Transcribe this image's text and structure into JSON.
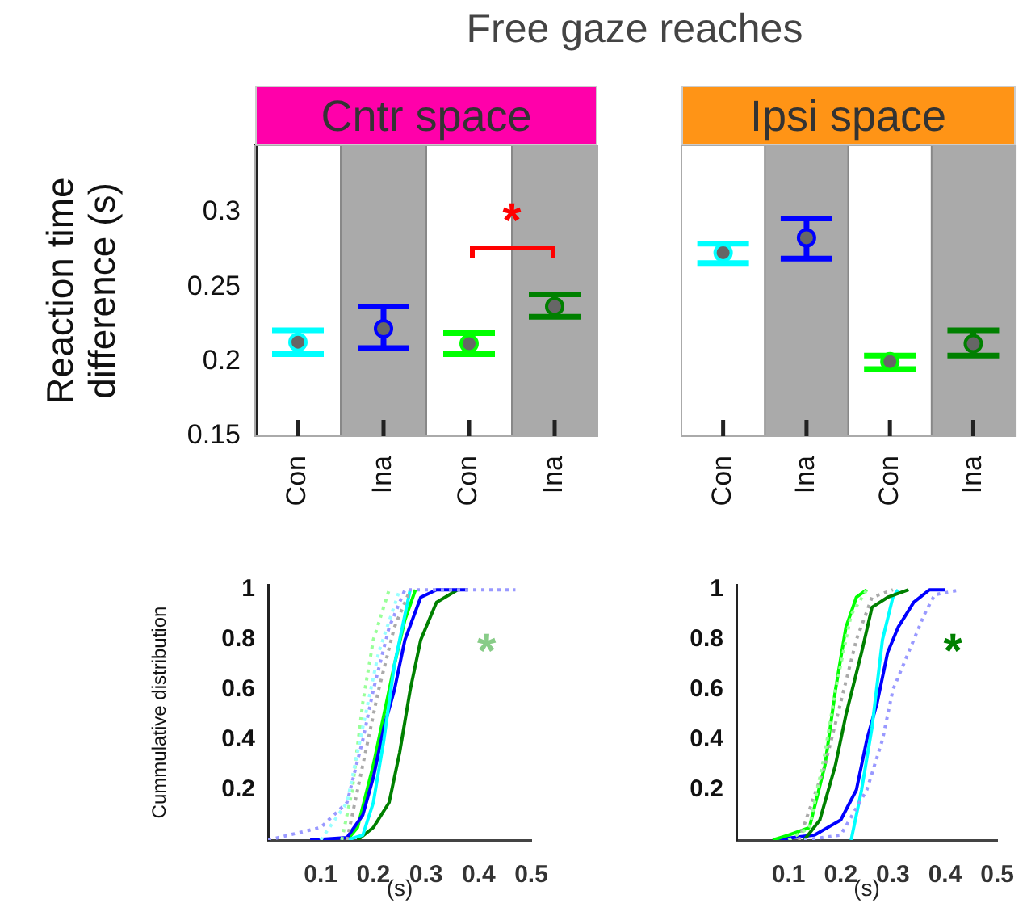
{
  "chart_data": [
    {
      "type": "scatter",
      "title": "Cntr space",
      "ylabel": "Reaction time difference (s)",
      "annotations": [
        "Free gaze reaches",
        "*"
      ],
      "categories": [
        "Con",
        "Ina",
        "Con",
        "Ina"
      ],
      "color": "#666666",
      "series": [
        {
          "color": "#00ffff",
          "values": [
            0.213,
            null,
            null,
            null
          ],
          "errors": [
            [
              0.205,
              0.221
            ],
            null,
            null,
            null
          ]
        },
        {
          "color": "#0000ff",
          "values": [
            null,
            0.222,
            null,
            null
          ],
          "errors": [
            null,
            [
              0.209,
              0.237
            ],
            null,
            null
          ]
        },
        {
          "color": "#00ff00",
          "values": [
            null,
            null,
            0.212,
            null
          ],
          "errors": [
            null,
            null,
            [
              0.205,
              0.219
            ],
            null
          ]
        },
        {
          "color": "#008000",
          "values": [
            null,
            null,
            null,
            0.237
          ],
          "errors": [
            null,
            null,
            null,
            [
              0.23,
              0.245
            ]
          ]
        }
      ],
      "bands": [
        {
          "axis": "x",
          "from": "Ina",
          "to": "Ina",
          "color": "#aaaaaa"
        }
      ],
      "ylim": [
        0.15,
        0.345
      ],
      "yticks": [
        0.15,
        0.2,
        0.25,
        0.3
      ],
      "grid": false,
      "legend": false,
      "marker": "circle"
    },
    {
      "type": "scatter",
      "title": "Ipsi space",
      "categories": [
        "Con",
        "Ina",
        "Con",
        "Ina"
      ],
      "color": "#666666",
      "series": [
        {
          "color": "#00ffff",
          "values": [
            0.273,
            null,
            null,
            null
          ],
          "errors": [
            [
              0.266,
              0.279
            ],
            null,
            null,
            null
          ]
        },
        {
          "color": "#0000ff",
          "values": [
            null,
            0.283,
            null,
            null
          ],
          "errors": [
            null,
            [
              0.269,
              0.296
            ],
            null,
            null
          ]
        },
        {
          "color": "#00ff00",
          "values": [
            null,
            null,
            0.2,
            null
          ],
          "errors": [
            null,
            null,
            [
              0.195,
              0.204
            ],
            null
          ]
        },
        {
          "color": "#008000",
          "values": [
            null,
            null,
            null,
            0.212
          ],
          "errors": [
            null,
            null,
            null,
            [
              0.204,
              0.221
            ]
          ]
        }
      ],
      "bands": [
        {
          "axis": "x",
          "from": "Ina",
          "to": "Ina",
          "color": "#aaaaaa"
        }
      ],
      "ylim": [
        0.15,
        0.345
      ],
      "yticks": [
        0.15,
        0.2,
        0.25,
        0.3
      ],
      "tick_labels": "x",
      "grid": false,
      "legend": false,
      "marker": "circle"
    },
    {
      "type": "line",
      "xlabel": "(s)",
      "ylabel": "Cummulative distribution",
      "annotations": [
        "*"
      ],
      "xlim": [
        0,
        0.5
      ],
      "xticks": [
        0.1,
        0.2,
        0.3,
        0.4,
        0.5
      ],
      "ylim": [
        0,
        1.02
      ],
      "yticks": [
        0.2,
        0.4,
        0.6,
        0.8,
        1
      ],
      "grid": false,
      "legend": false,
      "marker": "none",
      "series": [
        {
          "color": "#9999ff",
          "line_style": "dotted",
          "x": [
            0,
            0.1,
            0.15,
            0.18,
            0.2,
            0.23,
            0.26,
            0.47
          ],
          "values": [
            0,
            0.05,
            0.15,
            0.4,
            0.6,
            0.85,
            1,
            1
          ]
        },
        {
          "color": "#99ffff",
          "line_style": "dotted",
          "x": [
            0.1,
            0.15,
            0.18,
            0.21,
            0.25
          ],
          "values": [
            0,
            0.15,
            0.45,
            0.75,
            1
          ]
        },
        {
          "color": "#99ff99",
          "line_style": "dotted",
          "x": [
            0.14,
            0.16,
            0.18,
            0.2,
            0.23
          ],
          "values": [
            0,
            0.2,
            0.55,
            0.8,
            1
          ]
        },
        {
          "color": "#aaaaaa",
          "line_style": "dotted",
          "x": [
            0.15,
            0.18,
            0.21,
            0.24,
            0.27
          ],
          "values": [
            0,
            0.3,
            0.6,
            0.85,
            1
          ]
        },
        {
          "color": "#00ffff",
          "line_style": "solid",
          "x": [
            0.15,
            0.18,
            0.2,
            0.22,
            0.24,
            0.26,
            0.27
          ],
          "values": [
            0,
            0.02,
            0.15,
            0.4,
            0.7,
            0.9,
            1
          ]
        },
        {
          "color": "#0000ff",
          "line_style": "solid",
          "x": [
            0.08,
            0.15,
            0.18,
            0.2,
            0.22,
            0.24,
            0.26,
            0.29,
            0.32,
            0.38
          ],
          "values": [
            0,
            0.01,
            0.1,
            0.25,
            0.45,
            0.6,
            0.8,
            0.97,
            1,
            1
          ]
        },
        {
          "color": "#00ff00",
          "line_style": "solid",
          "x": [
            0.15,
            0.17,
            0.2,
            0.22,
            0.24,
            0.26,
            0.28
          ],
          "values": [
            0,
            0.05,
            0.3,
            0.5,
            0.7,
            0.88,
            1
          ]
        },
        {
          "color": "#008000",
          "line_style": "solid",
          "x": [
            0.17,
            0.2,
            0.23,
            0.25,
            0.27,
            0.29,
            0.32,
            0.36
          ],
          "values": [
            0,
            0.05,
            0.15,
            0.35,
            0.6,
            0.8,
            0.95,
            1
          ]
        }
      ]
    },
    {
      "type": "line",
      "xlabel": "(s)",
      "annotations": [
        "*"
      ],
      "xlim": [
        0,
        0.5
      ],
      "xticks": [
        0.1,
        0.2,
        0.3,
        0.4,
        0.5
      ],
      "ylim": [
        0,
        1.02
      ],
      "yticks": [
        0.2,
        0.4,
        0.6,
        0.8,
        1
      ],
      "grid": false,
      "legend": false,
      "marker": "none",
      "series": [
        {
          "color": "#9999ff",
          "line_style": "dotted",
          "x": [
            0.13,
            0.2,
            0.25,
            0.28,
            0.3,
            0.33,
            0.36,
            0.38,
            0.43
          ],
          "values": [
            0,
            0.02,
            0.2,
            0.4,
            0.6,
            0.75,
            0.9,
            0.98,
            1
          ]
        },
        {
          "color": "#99ff99",
          "line_style": "dotted",
          "x": [
            0.1,
            0.14,
            0.17,
            0.19,
            0.22,
            0.25
          ],
          "values": [
            0,
            0.05,
            0.35,
            0.6,
            0.9,
            1
          ]
        },
        {
          "color": "#aaaaaa",
          "line_style": "dotted",
          "x": [
            0.12,
            0.17,
            0.2,
            0.23,
            0.26,
            0.3
          ],
          "values": [
            0,
            0.3,
            0.55,
            0.8,
            0.97,
            1
          ]
        },
        {
          "color": "#00ff00",
          "line_style": "solid",
          "x": [
            0.07,
            0.1,
            0.14,
            0.17,
            0.19,
            0.21,
            0.23,
            0.25
          ],
          "values": [
            0,
            0.02,
            0.05,
            0.3,
            0.6,
            0.85,
            0.97,
            1
          ]
        },
        {
          "color": "#008000",
          "line_style": "solid",
          "x": [
            0.13,
            0.16,
            0.19,
            0.21,
            0.24,
            0.26,
            0.29,
            0.33
          ],
          "values": [
            0,
            0.08,
            0.3,
            0.5,
            0.75,
            0.93,
            0.97,
            1
          ]
        },
        {
          "color": "#00ffff",
          "line_style": "solid",
          "x": [
            0.22,
            0.24,
            0.26,
            0.28,
            0.3,
            0.31
          ],
          "values": [
            0,
            0.2,
            0.45,
            0.8,
            0.97,
            1
          ]
        },
        {
          "color": "#0000ff",
          "line_style": "solid",
          "x": [
            0.07,
            0.15,
            0.2,
            0.23,
            0.25,
            0.27,
            0.29,
            0.31,
            0.34,
            0.37,
            0.4
          ],
          "values": [
            0,
            0.02,
            0.08,
            0.2,
            0.4,
            0.55,
            0.75,
            0.85,
            0.95,
            1,
            1
          ]
        }
      ]
    }
  ]
}
